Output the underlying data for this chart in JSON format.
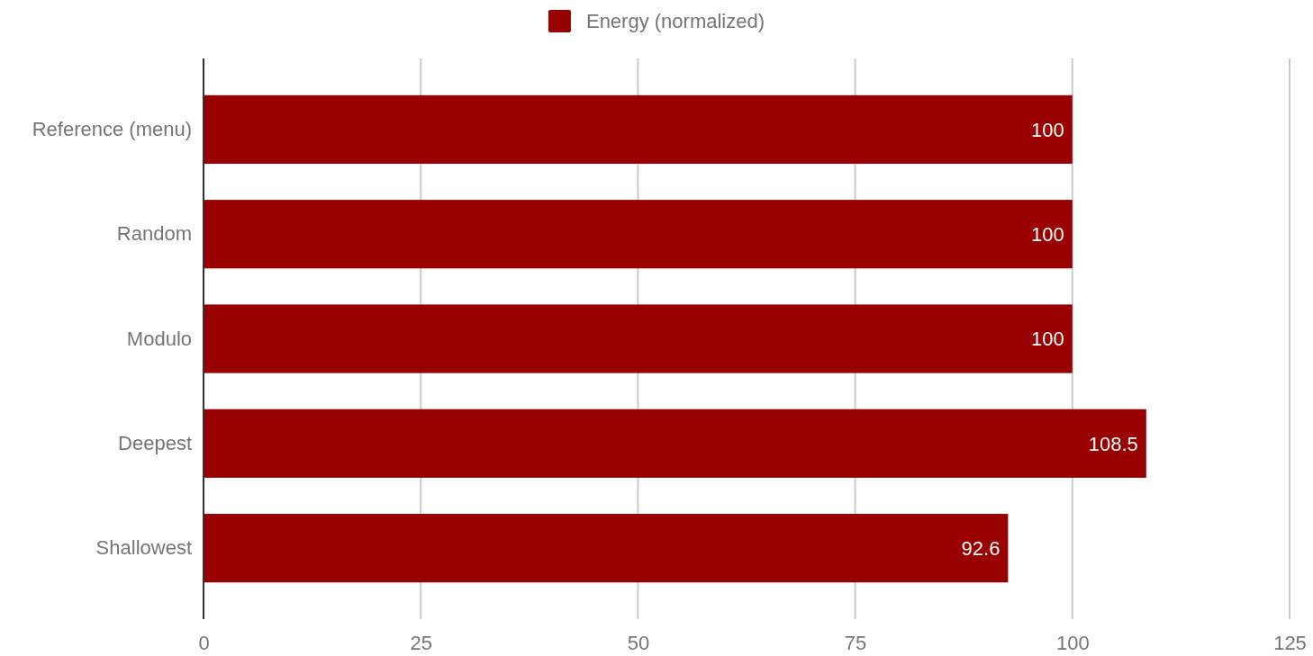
{
  "chart_data": {
    "type": "bar",
    "orientation": "horizontal",
    "categories": [
      "Reference (menu)",
      "Random",
      "Modulo",
      "Deepest",
      "Shallowest"
    ],
    "series": [
      {
        "name": "Energy (normalized)",
        "color": "#990000",
        "values": [
          100,
          100,
          100,
          108.5,
          92.6
        ]
      }
    ],
    "xlim": [
      0,
      125
    ],
    "xticks": [
      0,
      25,
      50,
      75,
      100,
      125
    ],
    "grid": "x",
    "legend": "top",
    "data_labels": true
  }
}
